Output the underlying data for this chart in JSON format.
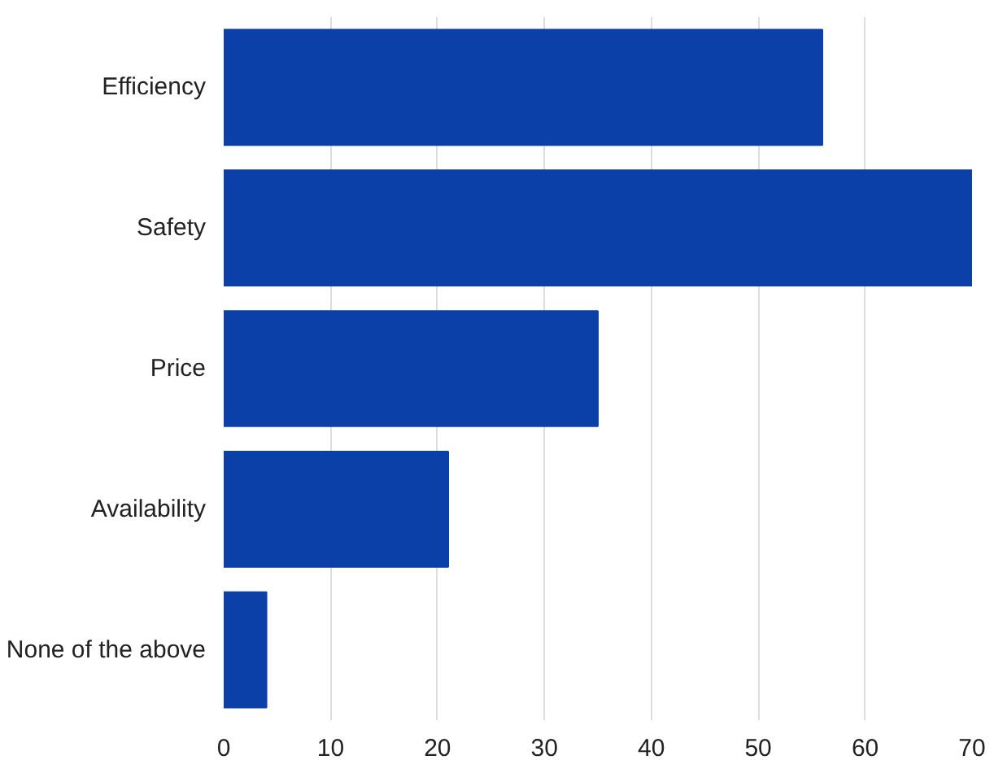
{
  "chart_data": {
    "type": "bar",
    "orientation": "horizontal",
    "categories": [
      "Efficiency",
      "Safety",
      "Price",
      "Availability",
      "None of the above"
    ],
    "values": [
      56,
      70,
      35,
      21,
      4
    ],
    "color": "#0b40a8",
    "xlim": [
      0,
      70
    ],
    "xticks": [
      0,
      10,
      20,
      30,
      40,
      50,
      60,
      70
    ],
    "grid": "x"
  }
}
